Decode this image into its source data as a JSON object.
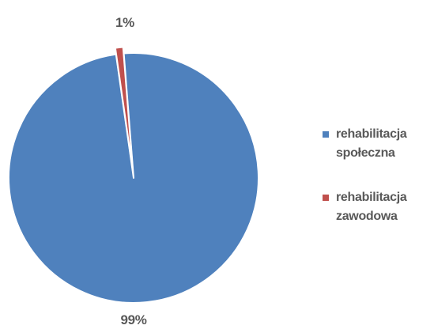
{
  "chart_data": {
    "type": "pie",
    "categories": [
      "rehabilitacja społeczna",
      "rehabilitacja zawodowa"
    ],
    "values": [
      99,
      1
    ],
    "data_labels": [
      "99%",
      "1%"
    ],
    "colors": [
      "#4F81BD",
      "#C0504D"
    ],
    "exploded_slice": "rehabilitacja zawodowa",
    "legend": {
      "position": "right",
      "entries": [
        {
          "label_line1": "rehabilitacja",
          "label_line2": "społeczna",
          "color": "#4F81BD"
        },
        {
          "label_line1": "rehabilitacja",
          "label_line2": "zawodowa",
          "color": "#C0504D"
        }
      ]
    }
  }
}
